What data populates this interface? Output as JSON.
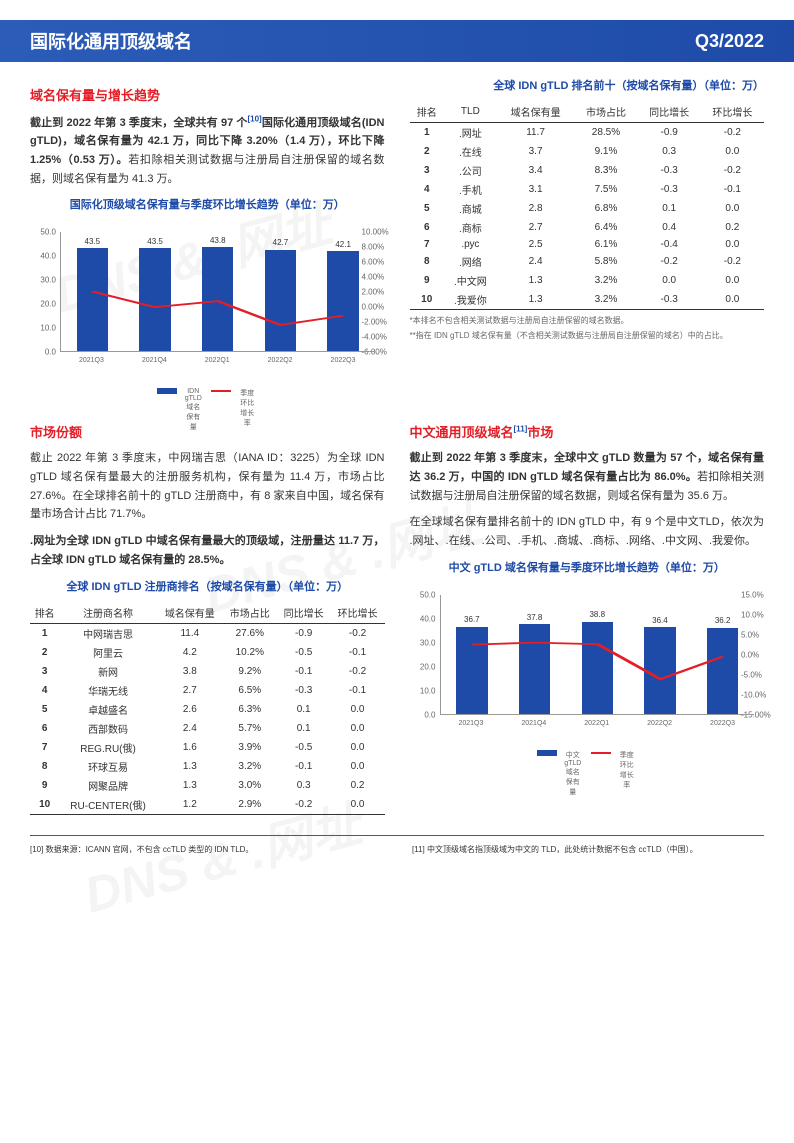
{
  "header": {
    "title": "国际化通用顶级域名",
    "quarter": "Q3/2022"
  },
  "sec1": {
    "title": "域名保有量与增长趋势",
    "para1": "截止到 2022 年第 3 季度末，全球共有 97 个<sup>[10]</sup>国际化通用顶级域名(IDN gTLD)，域名保有量为 42.1 万，同比下降 3.20%（1.4 万），环比下降 1.25%（0.53 万）。若扣除相关测试数据与注册局自注册保留的域名数据，则域名保有量为 41.3 万。",
    "chart_title": "国际化顶级域名保有量与季度环比增长趋势（单位：万）",
    "chart": {
      "x": [
        "2021Q3",
        "2021Q4",
        "2022Q1",
        "2022Q2",
        "2022Q3"
      ],
      "bars": [
        43.5,
        43.5,
        43.8,
        42.7,
        42.1
      ],
      "line": [
        2.0,
        -0.1,
        0.7,
        -2.5,
        -1.25
      ],
      "bar_color": "#1e4ba8",
      "line_color": "#e41e26",
      "ylim": [
        0,
        50
      ],
      "ylim2": [
        -6,
        10
      ],
      "yticks": [
        "0.0",
        "10.0",
        "20.0",
        "30.0",
        "40.0",
        "50.0"
      ],
      "yticks2": [
        "-6.00%",
        "-4.00%",
        "-2.00%",
        "0.00%",
        "2.00%",
        "4.00%",
        "6.00%",
        "8.00%",
        "10.00%"
      ]
    },
    "legend1": "IDN gTLD域名保有量",
    "legend2": "季度环比增长率"
  },
  "sec2": {
    "title": "全球 IDN gTLD 排名前十（按域名保有量）（单位：万）",
    "headers": [
      "排名",
      "TLD",
      "域名保有量",
      "市场占比",
      "同比增长",
      "环比增长"
    ],
    "rows": [
      [
        "1",
        ".网址",
        "11.7",
        "28.5%",
        "-0.9",
        "-0.2"
      ],
      [
        "2",
        ".在线",
        "3.7",
        "9.1%",
        "0.3",
        "0.0"
      ],
      [
        "3",
        ".公司",
        "3.4",
        "8.3%",
        "-0.3",
        "-0.2"
      ],
      [
        "4",
        ".手机",
        "3.1",
        "7.5%",
        "-0.3",
        "-0.1"
      ],
      [
        "5",
        ".商城",
        "2.8",
        "6.8%",
        "0.1",
        "0.0"
      ],
      [
        "6",
        ".商标",
        "2.7",
        "6.4%",
        "0.4",
        "0.2"
      ],
      [
        "7",
        ".рус",
        "2.5",
        "6.1%",
        "-0.4",
        "0.0"
      ],
      [
        "8",
        ".网络",
        "2.4",
        "5.8%",
        "-0.2",
        "-0.2"
      ],
      [
        "9",
        ".中文网",
        "1.3",
        "3.2%",
        "0.0",
        "0.0"
      ],
      [
        "10",
        ".我爱你",
        "1.3",
        "3.2%",
        "-0.3",
        "0.0"
      ]
    ],
    "fn1": "*本排名不包含相关测试数据与注册局自注册保留的域名数据。",
    "fn2": "**指在 IDN gTLD 域名保有量（不含相关测试数据与注册局自注册保留的域名）中的占比。"
  },
  "sec3": {
    "title": "市场份额",
    "para1": "截止 2022 年第 3 季度末，中网瑞吉思（IANA ID：3225）为全球 IDN gTLD 域名保有量最大的注册服务机构，保有量为 11.4 万，市场占比 27.6%。在全球排名前十的 gTLD 注册商中，有 8 家来自中国，域名保有量市场合计占比 71.7%。",
    "para2": ".网址为全球 IDN gTLD 中域名保有量最大的顶级域，注册量达 11.7 万，占全球 IDN gTLD 域名保有量的 28.5%。",
    "table_title": "全球 IDN gTLD 注册商排名（按域名保有量）（单位：万）",
    "headers": [
      "排名",
      "注册商名称",
      "域名保有量",
      "市场占比",
      "同比增长",
      "环比增长"
    ],
    "rows": [
      [
        "1",
        "中网瑞吉思",
        "11.4",
        "27.6%",
        "-0.9",
        "-0.2"
      ],
      [
        "2",
        "阿里云",
        "4.2",
        "10.2%",
        "-0.5",
        "-0.1"
      ],
      [
        "3",
        "新网",
        "3.8",
        "9.2%",
        "-0.1",
        "-0.2"
      ],
      [
        "4",
        "华瑞无线",
        "2.7",
        "6.5%",
        "-0.3",
        "-0.1"
      ],
      [
        "5",
        "卓越盛名",
        "2.6",
        "6.3%",
        "0.1",
        "0.0"
      ],
      [
        "6",
        "西部数码",
        "2.4",
        "5.7%",
        "0.1",
        "0.0"
      ],
      [
        "7",
        "REG.RU(俄)",
        "1.6",
        "3.9%",
        "-0.5",
        "0.0"
      ],
      [
        "8",
        "环球互易",
        "1.3",
        "3.2%",
        "-0.1",
        "0.0"
      ],
      [
        "9",
        "网聚品牌",
        "1.3",
        "3.0%",
        "0.3",
        "0.2"
      ],
      [
        "10",
        "RU-CENTER(俄)",
        "1.2",
        "2.9%",
        "-0.2",
        "0.0"
      ]
    ]
  },
  "sec4": {
    "title": "中文通用顶级域名<sup>[11]</sup>市场",
    "para1": "截止到 2022 年第 3 季度末，全球中文 gTLD 数量为 57 个，域名保有量达 36.2 万，中国的 IDN gTLD 域名保有量占比为 86.0%。若扣除相关测试数据与注册局自注册保留的域名数据，则域名保有量为 35.6 万。",
    "para2": "在全球域名保有量排名前十的 IDN gTLD 中，有 9 个是中文TLD，依次为 .网址、.在线、.公司、.手机、.商城、.商标、.网络、.中文网、.我爱你。",
    "chart_title": "中文 gTLD 域名保有量与季度环比增长趋势（单位：万）",
    "chart": {
      "x": [
        "2021Q3",
        "2021Q4",
        "2022Q1",
        "2022Q2",
        "2022Q3"
      ],
      "bars": [
        36.7,
        37.8,
        38.8,
        36.4,
        36.2
      ],
      "line": [
        2.5,
        3.0,
        2.6,
        -6.2,
        -0.5
      ],
      "bar_color": "#1e4ba8",
      "line_color": "#e41e26",
      "ylim": [
        0,
        50
      ],
      "ylim2": [
        -15,
        15
      ],
      "yticks": [
        "0.0",
        "10.0",
        "20.0",
        "30.0",
        "40.0",
        "50.0"
      ],
      "yticks2": [
        "-15.00%",
        "-10.0%",
        "-5.0%",
        "0.0%",
        "5.0%",
        "10.0%",
        "15.0%"
      ]
    },
    "legend1": "中文gTLD域名保有量",
    "legend2": "季度环比增长率"
  },
  "footer": {
    "left": "[10] 数据来源：ICANN 官网，不包含 ccTLD 类型的 IDN TLD。",
    "right": "[11] 中文顶级域名指顶级域为中文的 TLD，此处统计数据不包含 ccTLD（中国）。"
  },
  "watermark": "DNS & .网址"
}
